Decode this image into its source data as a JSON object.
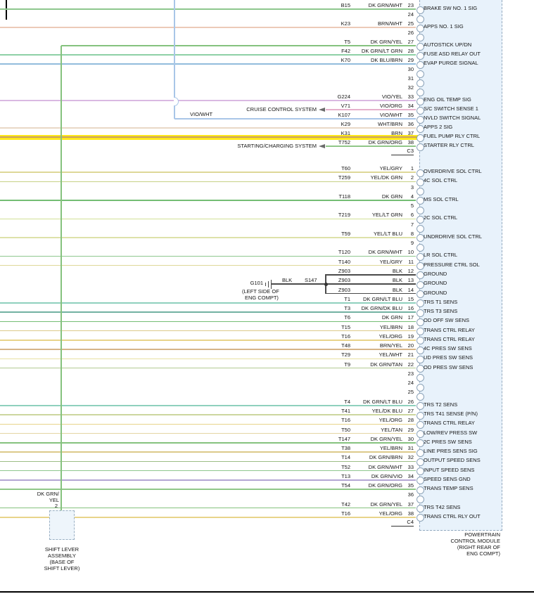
{
  "highlight_color": "#ffe81a",
  "highlight_core_color": "#cfc400",
  "connector_box": {
    "fill": "#d8eaf8",
    "border": "#93a9bf"
  },
  "connectors": [
    {
      "id": "C3",
      "label": "C3",
      "pins": [
        {
          "pin": "23",
          "code": "B15",
          "color": "DK GRN/WHT",
          "signal": "BRAKE SW NO. 1 SIG",
          "hex": "#8ec78e"
        },
        {
          "pin": "24"
        },
        {
          "pin": "25",
          "code": "K23",
          "color": "BRN/WHT",
          "signal": "APPS NO. 1 SIG",
          "hex": "#eccab8"
        },
        {
          "pin": "26"
        },
        {
          "pin": "27",
          "code": "T5",
          "color": "DK GRN/YEL",
          "signal": "AUTOSTICK UP/DN",
          "hex": "#85c27e"
        },
        {
          "pin": "28",
          "code": "F42",
          "color": "DK GRN/LT GRN",
          "signal": "FUSE ASD RELAY OUT",
          "hex": "#8ed0a6"
        },
        {
          "pin": "29",
          "code": "K70",
          "color": "DK BLU/BRN",
          "signal": "EVAP PURGE SIGNAL",
          "hex": "#92bcdc"
        },
        {
          "pin": "30"
        },
        {
          "pin": "31"
        },
        {
          "pin": "32"
        },
        {
          "pin": "33",
          "code": "G224",
          "color": "VIO/YEL",
          "signal": "ENG OIL TEMP SIG",
          "hex": "#d9b9e2"
        },
        {
          "pin": "34",
          "code": "V71",
          "color": "VIO/ORG",
          "signal": "S/C SWITCH SENSE 1",
          "hex": "#e5b0cc"
        },
        {
          "pin": "35",
          "code": "K107",
          "color": "VIO/WHT",
          "signal": "NVLD SWITCH SIGNAL",
          "hex": "#a9c6e8"
        },
        {
          "pin": "36",
          "code": "K29",
          "color": "WHT/BRN",
          "signal": "APPS 2 SIG",
          "hex": "#e9d8c6"
        },
        {
          "pin": "37",
          "code": "K31",
          "color": "BRN",
          "signal": "FUEL PUMP RLY CTRL",
          "hex": "#c9a063",
          "highlight": true
        },
        {
          "pin": "38",
          "code": "T752",
          "color": "DK GRN/ORG",
          "signal": "STARTER RLY CTRL",
          "hex": "#90c788"
        }
      ]
    },
    {
      "id": "C4",
      "label": "C4",
      "pins": [
        {
          "pin": "1",
          "code": "T60",
          "color": "YEL/GRY",
          "signal": "OVERDRIVE SOL CTRL",
          "hex": "#ded898"
        },
        {
          "pin": "2",
          "code": "T259",
          "color": "YEL/DK GRN",
          "signal": "4C SOL CTRL",
          "hex": "#c6d286"
        },
        {
          "pin": "3"
        },
        {
          "pin": "4",
          "code": "T118",
          "color": "DK GRN",
          "signal": "MS SOL CTRL",
          "hex": "#74bd74"
        },
        {
          "pin": "5"
        },
        {
          "pin": "6",
          "code": "T219",
          "color": "YEL/LT GRN",
          "signal": "2C SOL CTRL",
          "hex": "#d2e096"
        },
        {
          "pin": "7"
        },
        {
          "pin": "8",
          "code": "T59",
          "color": "YEL/LT BLU",
          "signal": "UNDRDRIVE SOL CTRL",
          "hex": "#dee2aa"
        },
        {
          "pin": "9"
        },
        {
          "pin": "10",
          "code": "T120",
          "color": "DK GRN/WHT",
          "signal": "LR SOL CTRL",
          "hex": "#8ec78e"
        },
        {
          "pin": "11",
          "code": "T140",
          "color": "YEL/GRY",
          "signal": "PRESSURE CTRL SOL",
          "hex": "#ded898"
        },
        {
          "pin": "12",
          "code": "Z903",
          "color": "BLK",
          "signal": "GROUND",
          "hex": "#4a4a4a"
        },
        {
          "pin": "13",
          "code": "Z903",
          "color": "BLK",
          "signal": "GROUND",
          "hex": "#4a4a4a"
        },
        {
          "pin": "14",
          "code": "Z903",
          "color": "BLK",
          "signal": "GROUND",
          "hex": "#4a4a4a"
        },
        {
          "pin": "15",
          "code": "T1",
          "color": "DK GRN/LT BLU",
          "signal": "TRS T1 SENS",
          "hex": "#8fd0bd"
        },
        {
          "pin": "16",
          "code": "T3",
          "color": "DK GRN/DK BLU",
          "signal": "TRS T3 SENS",
          "hex": "#72b2a2"
        },
        {
          "pin": "17",
          "code": "T6",
          "color": "DK GRN",
          "signal": "OD OFF SW SENS",
          "hex": "#74bd74"
        },
        {
          "pin": "18",
          "code": "T15",
          "color": "YEL/BRN",
          "signal": "TRANS CTRL RELAY",
          "hex": "#dcc98a"
        },
        {
          "pin": "19",
          "code": "T16",
          "color": "YEL/ORG",
          "signal": "TRANS CTRL RELAY",
          "hex": "#e8d48a"
        },
        {
          "pin": "20",
          "code": "T48",
          "color": "BRN/YEL",
          "signal": "4C PRES SW SENS",
          "hex": "#d6b488"
        },
        {
          "pin": "21",
          "code": "T29",
          "color": "YEL/WHT",
          "signal": "UD PRES SW SENS",
          "hex": "#e9e0a2"
        },
        {
          "pin": "22",
          "code": "T9",
          "color": "DK GRN/TAN",
          "signal": "OD PRES SW SENS",
          "hex": "#b2ca92"
        },
        {
          "pin": "23"
        },
        {
          "pin": "24"
        },
        {
          "pin": "25"
        },
        {
          "pin": "26",
          "code": "T4",
          "color": "DK GRN/LT BLU",
          "signal": "TRS T2 SENS",
          "hex": "#8fd0bd"
        },
        {
          "pin": "27",
          "code": "T41",
          "color": "YEL/DK BLU",
          "signal": "TRS T41 SENSE (P/N)",
          "hex": "#ccd69e"
        },
        {
          "pin": "28",
          "code": "T16",
          "color": "YEL/ORG",
          "signal": "TRANS CTRL RELAY",
          "hex": "#e8d48a"
        },
        {
          "pin": "29",
          "code": "T50",
          "color": "YEL/TAN",
          "signal": "LOW/REV PRESS SW",
          "hex": "#e4d6a4"
        },
        {
          "pin": "30",
          "code": "T147",
          "color": "DK GRN/YEL",
          "signal": "2C PRES SW SENS",
          "hex": "#85c27e"
        },
        {
          "pin": "31",
          "code": "T38",
          "color": "YEL/BRN",
          "signal": "LINE PRES SENS SIG",
          "hex": "#dcc98a"
        },
        {
          "pin": "32",
          "code": "T14",
          "color": "DK GRN/BRN",
          "signal": "OUTPUT SPEED SENS",
          "hex": "#9cbd85"
        },
        {
          "pin": "33",
          "code": "T52",
          "color": "DK GRN/WHT",
          "signal": "INPUT SPEED SENS",
          "hex": "#8ec78e"
        },
        {
          "pin": "34",
          "code": "T13",
          "color": "DK GRN/VIO",
          "signal": "SPEED SENS GND",
          "hex": "#b4a6d4"
        },
        {
          "pin": "35",
          "code": "T54",
          "color": "DK GRN/ORG",
          "signal": "TRANS TEMP SENS",
          "hex": "#90c788"
        },
        {
          "pin": "36"
        },
        {
          "pin": "37",
          "code": "T42",
          "color": "DK GRN/YEL",
          "signal": "TRS T42 SENS",
          "hex": "#85c27e"
        },
        {
          "pin": "38",
          "code": "T16",
          "color": "YEL/ORG",
          "signal": "TRANS CTRL RLY OUT",
          "hex": "#e8d48a"
        }
      ]
    }
  ],
  "annotations": {
    "cruise_system": "CRUISE CONTROL SYSTEM",
    "starting_system": "STARTING/CHARGING SYSTEM",
    "vio_wht": "VIO/WHT",
    "blk": "BLK",
    "splice": "S147",
    "ground_id": "G101",
    "ground_loc": [
      "(LEFT SIDE OF",
      "ENG COMPT)"
    ],
    "shift_wire": [
      "DK GRN/",
      "YEL"
    ],
    "shift_pin": "2",
    "shift_label": [
      "SHIFT LEVER",
      "ASSEMBLY",
      "(BASE OF",
      "SHIFT LEVER)"
    ],
    "pcm_label": [
      "POWERTRAIN",
      "CONTROL MODULE",
      "(RIGHT REAR OF",
      "ENG COMPT)"
    ]
  }
}
